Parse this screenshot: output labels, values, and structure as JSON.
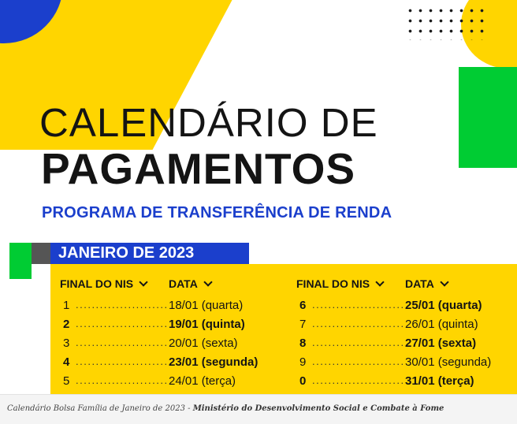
{
  "title": {
    "line1": "CALENDÁRIO DE",
    "line2": "PAGAMENTOS"
  },
  "subtitle": "PROGRAMA DE TRANSFERÊNCIA DE RENDA",
  "month_banner": "JANEIRO DE 2023",
  "table": {
    "header_nis": "FINAL DO NIS",
    "header_date": "DATA",
    "dots": "..............................",
    "left": [
      {
        "nis": "1",
        "date": "18/01 (quarta)",
        "bold": false
      },
      {
        "nis": "2",
        "date": "19/01 (quinta)",
        "bold": true
      },
      {
        "nis": "3",
        "date": "20/01 (sexta)",
        "bold": false
      },
      {
        "nis": "4",
        "date": "23/01 (segunda)",
        "bold": true
      },
      {
        "nis": "5",
        "date": "24/01 (terça)",
        "bold": false
      }
    ],
    "right": [
      {
        "nis": "6",
        "date": "25/01 (quarta)",
        "bold": true
      },
      {
        "nis": "7",
        "date": "26/01 (quinta)",
        "bold": false
      },
      {
        "nis": "8",
        "date": "27/01 (sexta)",
        "bold": true
      },
      {
        "nis": "9",
        "date": "30/01 (segunda)",
        "bold": false
      },
      {
        "nis": "0",
        "date": "31/01 (terça)",
        "bold": true
      }
    ]
  },
  "caption": {
    "text": "Calendário Bolsa Família de Janeiro de 2023 - ",
    "source": "Ministério do Desenvolvimento Social e Combate à Fome"
  },
  "colors": {
    "yellow": "#ffd500",
    "blue": "#1b3fcc",
    "green": "#00cc33",
    "dark": "#141414"
  }
}
